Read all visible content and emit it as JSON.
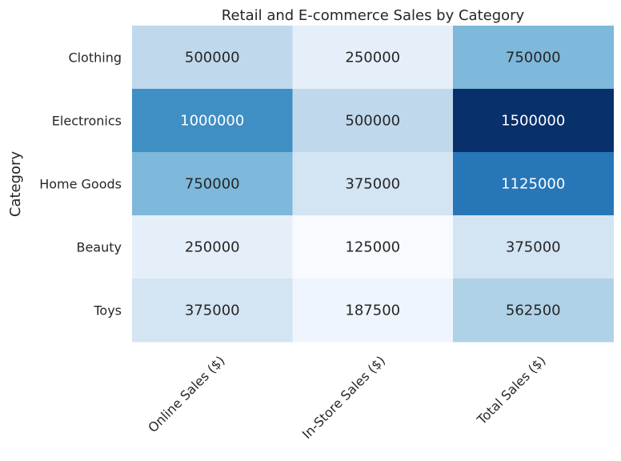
{
  "chart_data": {
    "type": "heatmap",
    "title": "Retail and E-commerce Sales by Category",
    "xlabel": "",
    "ylabel": "Category",
    "columns": [
      "Online Sales ($)",
      "In-Store Sales ($)",
      "Total Sales ($)"
    ],
    "rows": [
      "Clothing",
      "Electronics",
      "Home Goods",
      "Beauty",
      "Toys"
    ],
    "values": [
      [
        500000,
        250000,
        750000
      ],
      [
        1000000,
        500000,
        1500000
      ],
      [
        750000,
        375000,
        1125000
      ],
      [
        250000,
        125000,
        375000
      ],
      [
        375000,
        187500,
        562500
      ]
    ],
    "colormap": "Blues",
    "colorbar": false,
    "value_range": [
      125000,
      1500000
    ],
    "colors": {
      "dark_text": "#262626",
      "light_text": "#ffffff"
    }
  }
}
